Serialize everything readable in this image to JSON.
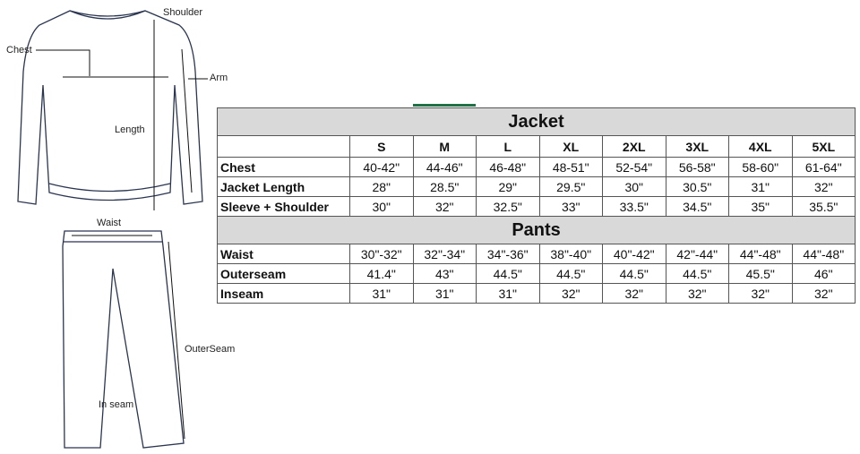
{
  "labels": {
    "shoulder": "Shoulder",
    "chest": "Chest",
    "arm": "Arm",
    "length": "Length",
    "waist": "Waist",
    "outerseam": "OuterSeam",
    "inseam": "In seam"
  },
  "jacket": {
    "title": "Jacket",
    "sizes": [
      "S",
      "M",
      "L",
      "XL",
      "2XL",
      "3XL",
      "4XL",
      "5XL"
    ],
    "rows": [
      {
        "label": "Chest",
        "values": [
          "40-42\"",
          "44-46\"",
          "46-48\"",
          "48-51\"",
          "52-54\"",
          "56-58\"",
          "58-60\"",
          "61-64\""
        ]
      },
      {
        "label": "Jacket Length",
        "values": [
          "28\"",
          "28.5\"",
          "29\"",
          "29.5\"",
          "30\"",
          "30.5\"",
          "31\"",
          "32\""
        ]
      },
      {
        "label": "Sleeve + Shoulder",
        "values": [
          "30\"",
          "32\"",
          "32.5\"",
          "33\"",
          "33.5\"",
          "34.5\"",
          "35\"",
          "35.5\""
        ]
      }
    ]
  },
  "pants": {
    "title": "Pants",
    "rows": [
      {
        "label": "Waist",
        "values": [
          "30\"-32\"",
          "32\"-34\"",
          "34\"-36\"",
          "38\"-40\"",
          "40\"-42\"",
          "42\"-44\"",
          "44\"-48\"",
          "44\"-48\""
        ]
      },
      {
        "label": "Outerseam",
        "values": [
          "41.4\"",
          "43\"",
          "44.5\"",
          "44.5\"",
          "44.5\"",
          "44.5\"",
          "45.5\"",
          "46\""
        ]
      },
      {
        "label": "Inseam",
        "values": [
          "31\"",
          "31\"",
          "31\"",
          "32\"",
          "32\"",
          "32\"",
          "32\"",
          "32\""
        ]
      }
    ]
  },
  "colors": {
    "header_bg": "#d9d9d9",
    "accent": "#1e7145"
  }
}
